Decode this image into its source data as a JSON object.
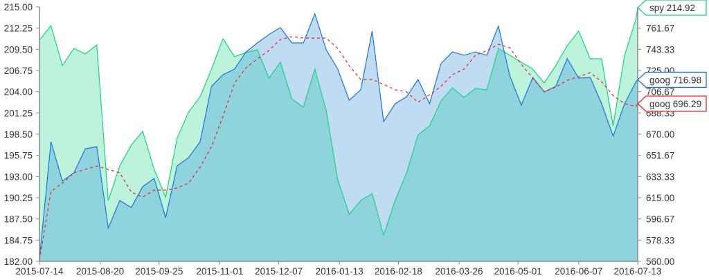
{
  "chart_data": {
    "type": "area",
    "x_type": "date",
    "x": [
      "2015-07-14",
      "2015-07-21",
      "2015-07-28",
      "2015-08-04",
      "2015-08-11",
      "2015-08-18",
      "2015-08-25",
      "2015-09-01",
      "2015-09-08",
      "2015-09-15",
      "2015-09-22",
      "2015-09-29",
      "2015-10-06",
      "2015-10-13",
      "2015-10-20",
      "2015-10-27",
      "2015-11-03",
      "2015-11-10",
      "2015-11-17",
      "2015-11-24",
      "2015-12-01",
      "2015-12-08",
      "2015-12-15",
      "2015-12-22",
      "2015-12-29",
      "2016-01-05",
      "2016-01-12",
      "2016-01-19",
      "2016-01-26",
      "2016-02-02",
      "2016-02-09",
      "2016-02-16",
      "2016-02-23",
      "2016-03-01",
      "2016-03-08",
      "2016-03-15",
      "2016-03-22",
      "2016-03-29",
      "2016-04-05",
      "2016-04-12",
      "2016-04-19",
      "2016-04-26",
      "2016-05-03",
      "2016-05-10",
      "2016-05-17",
      "2016-05-24",
      "2016-05-31",
      "2016-06-07",
      "2016-06-14",
      "2016-06-21",
      "2016-06-28",
      "2016-07-05",
      "2016-07-12",
      "2016-07-13"
    ],
    "xlim": [
      "2015-07-14",
      "2016-07-13"
    ],
    "x_ticks": [
      "2015-07-14",
      "2015-08-20",
      "2015-09-25",
      "2015-11-01",
      "2015-12-07",
      "2016-01-13",
      "2016-02-18",
      "2016-03-26",
      "2016-05-01",
      "2016-06-07",
      "2016-07-13"
    ],
    "y_left": {
      "range": [
        182,
        215
      ],
      "ticks": [
        "182.00",
        "184.75",
        "187.50",
        "190.25",
        "193.00",
        "195.75",
        "198.50",
        "201.25",
        "204.00",
        "206.75",
        "209.50",
        "212.25",
        "215.00"
      ]
    },
    "y_right": {
      "range": [
        560,
        780
      ],
      "ticks": [
        "560.00",
        "578.33",
        "596.67",
        "615.00",
        "633.33",
        "651.67",
        "670.00",
        "688.33",
        "706.67",
        "725.00",
        "743.33",
        "761.67"
      ]
    },
    "grid": false,
    "series": [
      {
        "name": "spy",
        "axis": "left",
        "style": "area",
        "color": "#17d47e",
        "fill": "#bdf3da",
        "values": [
          210.7,
          212.58,
          207.38,
          209.62,
          208.9,
          210.07,
          189.89,
          194.38,
          197.07,
          198.86,
          193.93,
          190.34,
          197.96,
          201.37,
          203.34,
          206.93,
          210.88,
          208.54,
          209.08,
          209.44,
          205.76,
          207.83,
          203.07,
          202.0,
          206.93,
          201.55,
          192.58,
          188.1,
          189.89,
          190.79,
          185.41,
          189.89,
          193.48,
          198.41,
          199.58,
          202.8,
          204.51,
          203.25,
          204.42,
          204.24,
          209.62,
          208.72,
          207.83,
          206.93,
          205.14,
          207.38,
          209.98,
          211.86,
          208.27,
          208.27,
          199.58,
          208.72,
          213.48,
          214.92
        ]
      },
      {
        "name": "goog",
        "axis": "right",
        "style": "area",
        "color": "#1a74d8",
        "fill": "#c0dcf3",
        "values": [
          562.0,
          663.4,
          629.4,
          636.5,
          657.4,
          659.2,
          588.7,
          612.6,
          606.6,
          624.6,
          631.7,
          597.7,
          642.5,
          649.7,
          663.4,
          711.3,
          721.4,
          726.2,
          741.1,
          748.9,
          756.1,
          762.1,
          748.9,
          748.9,
          774.0,
          742.9,
          726.2,
          699.3,
          708.3,
          759.1,
          680.8,
          696.3,
          702.3,
          717.2,
          696.3,
          731.0,
          741.1,
          738.2,
          741.1,
          738.2,
          763.3,
          720.2,
          695.1,
          719.0,
          706.5,
          711.3,
          735.2,
          718.4,
          719.0,
          696.3,
          668.2,
          696.3,
          715.4,
          716.98
        ]
      },
      {
        "name": "goog",
        "axis": "right",
        "style": "dashed-line",
        "color": "#ee2222",
        "values": [
          561.0,
          620.4,
          627.6,
          636.5,
          639.5,
          642.5,
          639.5,
          636.5,
          619.8,
          615.6,
          621.6,
          621.6,
          623.4,
          627.6,
          641.3,
          659.2,
          685.5,
          714.2,
          727.4,
          735.2,
          742.3,
          751.9,
          754.3,
          753.1,
          753.1,
          753.1,
          744.1,
          729.2,
          717.2,
          717.2,
          713.0,
          708.3,
          706.5,
          697.5,
          704.1,
          711.3,
          721.4,
          726.2,
          738.2,
          742.3,
          747.7,
          744.7,
          730.4,
          718.4,
          706.5,
          710.7,
          716.6,
          719.6,
          723.2,
          715.4,
          703.5,
          696.3,
          693.9,
          696.29
        ]
      }
    ],
    "overlap_fill": "#8fd4dc",
    "last_value_labels": [
      {
        "text": "spy 214.92",
        "series": 0,
        "color": "#17d47e"
      },
      {
        "text": "goog 716.98",
        "series": 1,
        "color": "#1a74d8"
      },
      {
        "text": "goog 696.29",
        "series": 2,
        "color": "#ee2222"
      }
    ]
  }
}
